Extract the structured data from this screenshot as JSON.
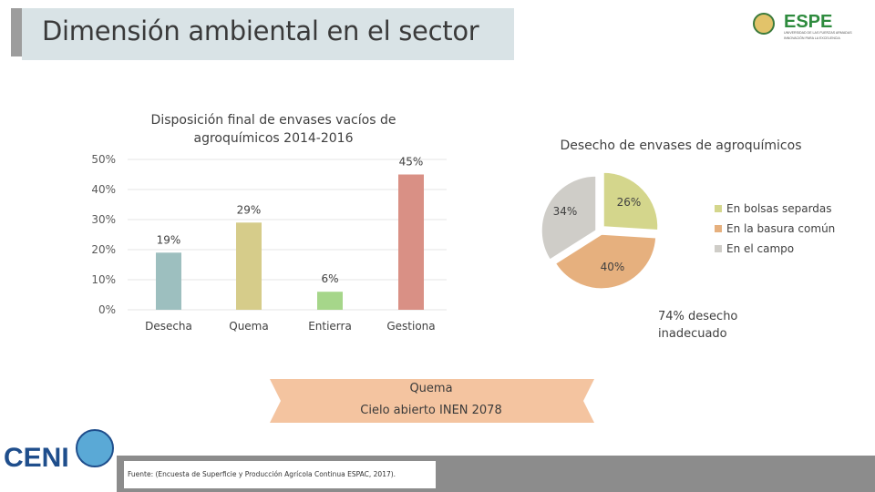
{
  "slide": {
    "title": "Dimensión ambiental en el sector",
    "logo_text": "ESPE",
    "logo_subtext": "UNIVERSIDAD DE LAS FUERZAS ARMADAS",
    "logo_tagline": "INNOVACIÓN PARA LA EXCELENCIA",
    "inadequate_line1": "74% desecho",
    "inadequate_line2": "inadecuado",
    "banner_line1": "Quema",
    "banner_line2": "Cielo abierto INEN 2078",
    "source": "Fuente: (Encuesta de Superficie y Producción Agrícola Continua ESPAC, 2017).",
    "ceni_logo_text": "CENI"
  },
  "colors": {
    "desecha": "#9dbfbf",
    "quema": "#d6cc8a",
    "entierra": "#a6d68a",
    "gestiona": "#d99085",
    "pie_bolsas": "#d4d68c",
    "pie_basura": "#e6b07e",
    "pie_campo": "#cfcdc8",
    "banner": "#f4c4a0"
  },
  "chart_data": [
    {
      "type": "bar",
      "title_line1": "Disposición final de envases vacíos de",
      "title_line2": "agroquímicos 2014-2016",
      "categories": [
        "Desecha",
        "Quema",
        "Entierra",
        "Gestiona"
      ],
      "values": [
        19,
        29,
        6,
        45
      ],
      "value_labels": [
        "19%",
        "29%",
        "6%",
        "45%"
      ],
      "yticks": [
        "0%",
        "10%",
        "20%",
        "30%",
        "40%",
        "50%"
      ],
      "ylim": [
        0,
        50
      ],
      "xlabel": "",
      "ylabel": ""
    },
    {
      "type": "pie",
      "title": "Desecho de envases de agroquímicos",
      "labels": [
        "En bolsas separdas",
        "En la basura común",
        "En el campo"
      ],
      "values": [
        26,
        40,
        34
      ],
      "value_labels": [
        "26%",
        "40%",
        "34%"
      ],
      "legend_position": "right"
    }
  ]
}
